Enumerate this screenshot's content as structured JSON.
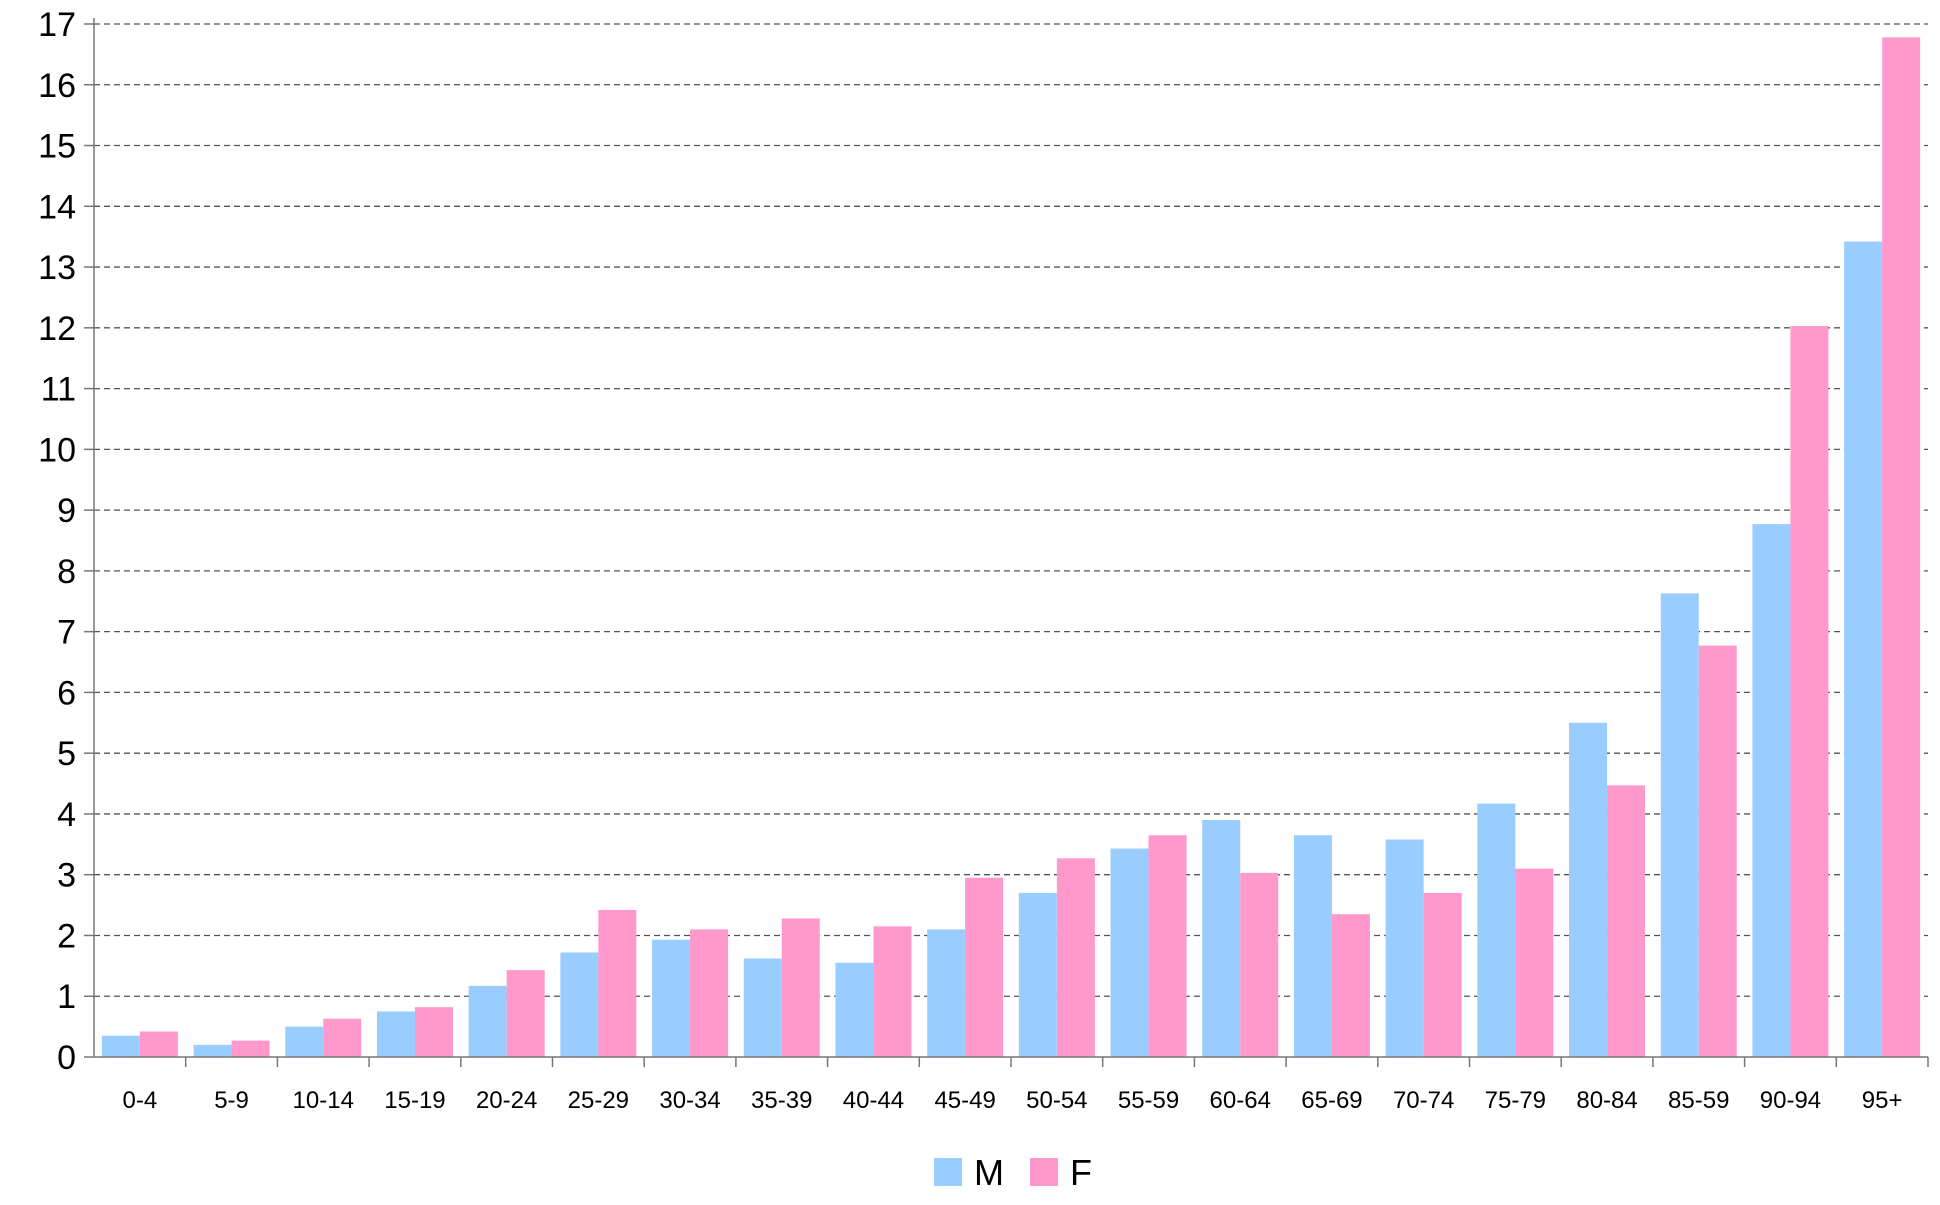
{
  "chart_data": {
    "type": "bar",
    "title": "",
    "xlabel": "",
    "ylabel": "",
    "ylim": [
      0,
      17
    ],
    "yticks": [
      "0",
      "1",
      "2",
      "3",
      "4",
      "5",
      "6",
      "7",
      "8",
      "9",
      "10",
      "11",
      "12",
      "13",
      "14",
      "15",
      "16",
      "17"
    ],
    "grid": true,
    "legend_position": "bottom-center",
    "categories": [
      "0-4",
      "5-9",
      "10-14",
      "15-19",
      "20-24",
      "25-29",
      "30-34",
      "35-39",
      "40-44",
      "45-49",
      "50-54",
      "55-59",
      "60-64",
      "65-69",
      "70-74",
      "75-79",
      "80-84",
      "85-59",
      "90-94",
      "95+"
    ],
    "series": [
      {
        "name": "M",
        "color": "#99ccff",
        "values": [
          0.35,
          0.2,
          0.5,
          0.75,
          1.17,
          1.72,
          1.93,
          1.62,
          1.55,
          2.1,
          2.7,
          3.43,
          3.9,
          3.65,
          3.58,
          4.17,
          5.5,
          7.63,
          8.77,
          13.42
        ]
      },
      {
        "name": "F",
        "color": "#ff99cc",
        "values": [
          0.42,
          0.27,
          0.63,
          0.82,
          1.43,
          2.42,
          2.1,
          2.28,
          2.15,
          2.95,
          3.27,
          3.65,
          3.03,
          2.35,
          2.7,
          3.1,
          4.47,
          6.77,
          12.03,
          16.78
        ]
      }
    ]
  }
}
